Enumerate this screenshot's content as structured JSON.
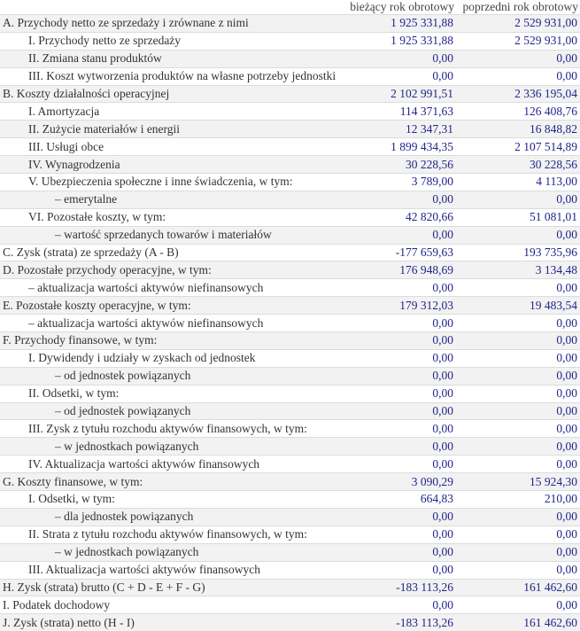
{
  "headers": [
    "",
    "bieżący rok obrotowy",
    "poprzedni rok obrotowy"
  ],
  "rows": [
    {
      "label": "A. Przychody netto ze sprzedaży i zrównane z nimi",
      "level": 0,
      "current": "1 925 331,88",
      "previous": "2 529 931,00"
    },
    {
      "label": "I. Przychody netto ze sprzedaży",
      "level": 1,
      "current": "1 925 331,88",
      "previous": "2 529 931,00"
    },
    {
      "label": "II. Zmiana stanu produktów",
      "level": 1,
      "current": "0,00",
      "previous": "0,00"
    },
    {
      "label": "III. Koszt wytworzenia produktów na własne potrzeby jednostki",
      "level": 1,
      "current": "0,00",
      "previous": "0,00"
    },
    {
      "label": "B. Koszty działalności operacyjnej",
      "level": 0,
      "current": "2 102 991,51",
      "previous": "2 336 195,04"
    },
    {
      "label": "I. Amortyzacja",
      "level": 1,
      "current": "114 371,63",
      "previous": "126 408,76"
    },
    {
      "label": "II. Zużycie materiałów i energii",
      "level": 1,
      "current": "12 347,31",
      "previous": "16 848,82"
    },
    {
      "label": "III. Usługi obce",
      "level": 1,
      "current": "1 899 434,35",
      "previous": "2 107 514,89"
    },
    {
      "label": "IV. Wynagrodzenia",
      "level": 1,
      "current": "30 228,56",
      "previous": "30 228,56"
    },
    {
      "label": "V. Ubezpieczenia społeczne i inne świadczenia, w tym:",
      "level": 1,
      "current": "3 789,00",
      "previous": "4 113,00"
    },
    {
      "label": "– emerytalne",
      "level": 2,
      "current": "0,00",
      "previous": "0,00"
    },
    {
      "label": "VI. Pozostałe koszty, w tym:",
      "level": 1,
      "current": "42 820,66",
      "previous": "51 081,01"
    },
    {
      "label": "– wartość sprzedanych towarów i materiałów",
      "level": 2,
      "current": "0,00",
      "previous": "0,00"
    },
    {
      "label": "C. Zysk (strata) ze sprzedaży (A - B)",
      "level": 0,
      "current": "-177 659,63",
      "previous": "193 735,96"
    },
    {
      "label": "D. Pozostałe przychody operacyjne, w tym:",
      "level": 0,
      "current": "176 948,69",
      "previous": "3 134,48"
    },
    {
      "label": "– aktualizacja wartości aktywów niefinansowych",
      "level": 1,
      "current": "0,00",
      "previous": "0,00"
    },
    {
      "label": "E. Pozostałe koszty operacyjne, w tym:",
      "level": 0,
      "current": "179 312,03",
      "previous": "19 483,54"
    },
    {
      "label": "– aktualizacja wartości aktywów niefinansowych",
      "level": 1,
      "current": "0,00",
      "previous": "0,00"
    },
    {
      "label": "F. Przychody finansowe, w tym:",
      "level": 0,
      "current": "0,00",
      "previous": "0,00"
    },
    {
      "label": "I. Dywidendy i udziały w zyskach od jednostek",
      "level": 1,
      "current": "0,00",
      "previous": "0,00"
    },
    {
      "label": "– od jednostek powiązanych",
      "level": 2,
      "current": "0,00",
      "previous": "0,00"
    },
    {
      "label": "II. Odsetki, w tym:",
      "level": 1,
      "current": "0,00",
      "previous": "0,00"
    },
    {
      "label": "– od jednostek powiązanych",
      "level": 2,
      "current": "0,00",
      "previous": "0,00"
    },
    {
      "label": "III. Zysk z tytułu rozchodu aktywów finansowych, w tym:",
      "level": 1,
      "current": "0,00",
      "previous": "0,00"
    },
    {
      "label": "– w jednostkach powiązanych",
      "level": 2,
      "current": "0,00",
      "previous": "0,00"
    },
    {
      "label": "IV. Aktualizacja wartości aktywów finansowych",
      "level": 1,
      "current": "0,00",
      "previous": "0,00"
    },
    {
      "label": "G. Koszty finansowe, w tym:",
      "level": 0,
      "current": "3 090,29",
      "previous": "15 924,30"
    },
    {
      "label": "I. Odsetki, w tym:",
      "level": 1,
      "current": "664,83",
      "previous": "210,00"
    },
    {
      "label": "– dla jednostek powiązanych",
      "level": 2,
      "current": "0,00",
      "previous": "0,00"
    },
    {
      "label": "II. Strata z tytułu rozchodu aktywów finansowych, w tym:",
      "level": 1,
      "current": "0,00",
      "previous": "0,00"
    },
    {
      "label": "– w jednostkach powiązanych",
      "level": 2,
      "current": "0,00",
      "previous": "0,00"
    },
    {
      "label": "III. Aktualizacja wartości aktywów finansowych",
      "level": 1,
      "current": "0,00",
      "previous": "0,00"
    },
    {
      "label": "H. Zysk (strata) brutto (C + D - E + F - G)",
      "level": 0,
      "current": "-183 113,26",
      "previous": "161 462,60"
    },
    {
      "label": "I. Podatek dochodowy",
      "level": 0,
      "current": "0,00",
      "previous": "0,00"
    },
    {
      "label": "J. Zysk (strata) netto (H - I)",
      "level": 0,
      "current": "-183 113,26",
      "previous": "161 462,60"
    }
  ]
}
